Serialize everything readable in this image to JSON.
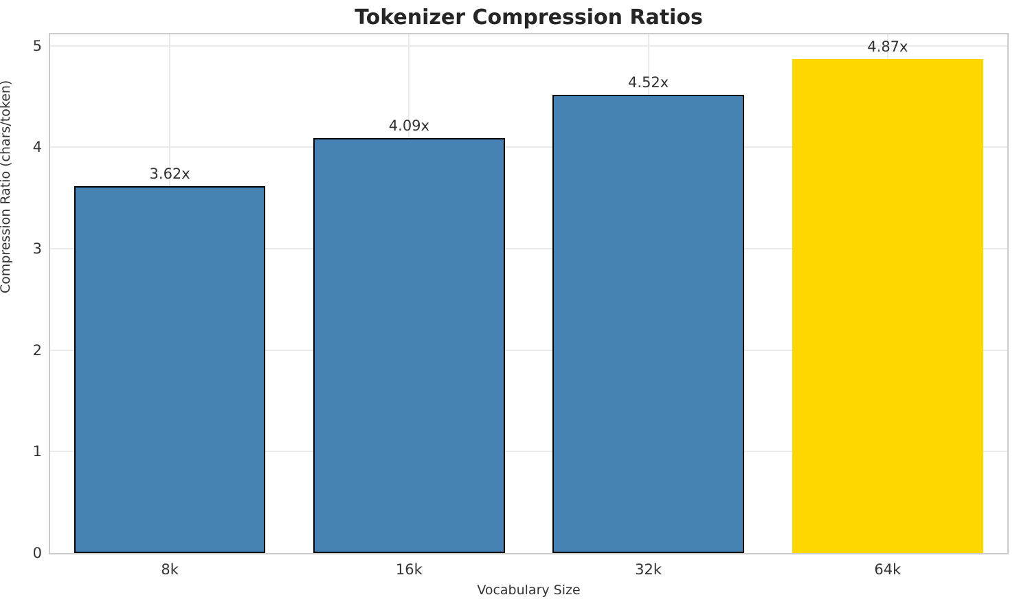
{
  "chart_data": {
    "type": "bar",
    "title": "Tokenizer Compression Ratios",
    "xlabel": "Vocabulary Size",
    "ylabel": "Compression Ratio (chars/token)",
    "categories": [
      "8k",
      "16k",
      "32k",
      "64k"
    ],
    "values": [
      3.62,
      4.09,
      4.52,
      4.87
    ],
    "bar_labels": [
      "3.62x",
      "4.09x",
      "4.52x",
      "4.87x"
    ],
    "bar_colors": [
      "#4682B4",
      "#4682B4",
      "#4682B4",
      "#FFD700"
    ],
    "bar_edge_colors": [
      "#000000",
      "#000000",
      "#000000",
      "none"
    ],
    "bar_width_fraction": 0.8,
    "yticks": [
      "0",
      "1",
      "2",
      "3",
      "4",
      "5"
    ],
    "ytick_values": [
      0,
      1,
      2,
      3,
      4,
      5
    ],
    "ylim": [
      0,
      5.1135
    ],
    "grid": true,
    "grid_color": "#ebebeb",
    "spine_color": "#cccccc",
    "background_color": "#ffffff",
    "title_color": "#262626",
    "text_color": "#333333",
    "legend_position": "none"
  }
}
